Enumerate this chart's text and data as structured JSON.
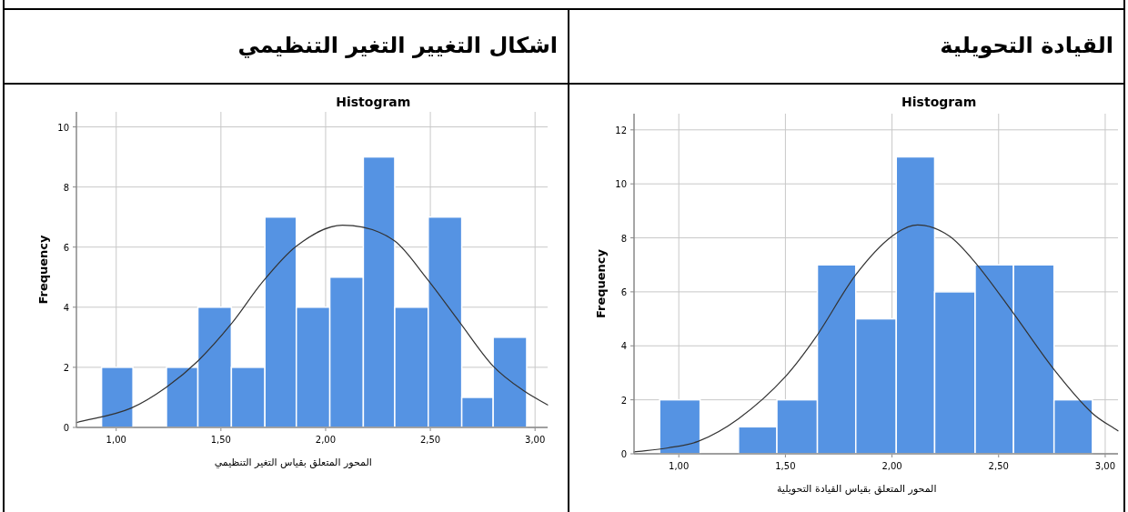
{
  "chart_data": [
    {
      "type": "histogram",
      "title": "القيادة التحويلية",
      "subtitle": "Histogram",
      "xlabel": "المحور المتعلق  بقياس القيادة التحويلية",
      "ylabel": "Frequency",
      "color": "#5593e3",
      "bins": [
        0.91,
        1.1,
        1.28,
        1.46,
        1.65,
        1.83,
        2.02,
        2.2,
        2.39,
        2.57,
        2.76,
        2.94
      ],
      "values": [
        2,
        0,
        1,
        2,
        7,
        5,
        11,
        6,
        7,
        7,
        2
      ],
      "series": [
        {
          "type": "line",
          "color": "#333333",
          "x": [
            0.79,
            0.95,
            1.09,
            1.28,
            1.5,
            1.64,
            1.83,
            2.0,
            2.12,
            2.27,
            2.39,
            2.57,
            2.76,
            2.94,
            3.06
          ],
          "values": [
            0.07,
            0.22,
            0.46,
            1.3,
            2.86,
            4.29,
            6.63,
            8.06,
            8.48,
            8.06,
            7.09,
            5.2,
            3.12,
            1.5,
            0.85
          ]
        }
      ],
      "xlim": [
        0.79,
        3.06
      ],
      "ylim": [
        0,
        12.6
      ],
      "xticks": [
        {
          "value": 1,
          "label": "1,00"
        },
        {
          "value": 1.5,
          "label": "1,50"
        },
        {
          "value": 2,
          "label": "2,00"
        },
        {
          "value": 2.5,
          "label": "2,50"
        },
        {
          "value": 3,
          "label": "3,00"
        }
      ],
      "yticks": [
        0,
        2,
        4,
        6,
        8,
        10,
        12
      ],
      "grid": true
    },
    {
      "type": "histogram",
      "title": "اشكال التغيير التغير التنظيمي",
      "subtitle": "Histogram",
      "xlabel": "المحور المتعلق  بقياس التغير التنظيمي",
      "ylabel": "Frequency",
      "color": "#5593e3",
      "bins": [
        0.93,
        1.08,
        1.24,
        1.39,
        1.55,
        1.71,
        1.86,
        2.02,
        2.18,
        2.33,
        2.49,
        2.65,
        2.8,
        2.96
      ],
      "values": [
        2,
        0,
        2,
        4,
        2,
        7,
        4,
        5,
        9,
        4,
        7,
        1,
        3
      ],
      "series": [
        {
          "type": "line",
          "color": "#333333",
          "x": [
            0.81,
            1.07,
            1.24,
            1.39,
            1.55,
            1.7,
            1.86,
            2.08,
            2.33,
            2.48,
            2.64,
            2.8,
            2.95,
            3.06
          ],
          "values": [
            0.16,
            0.64,
            1.34,
            2.21,
            3.45,
            4.85,
            6.03,
            6.73,
            6.2,
            4.98,
            3.5,
            2.04,
            1.2,
            0.75
          ]
        }
      ],
      "xlim": [
        0.81,
        3.06
      ],
      "ylim": [
        0,
        10.5
      ],
      "xticks": [
        {
          "value": 1,
          "label": "1,00"
        },
        {
          "value": 1.5,
          "label": "1,50"
        },
        {
          "value": 2,
          "label": "2,00"
        },
        {
          "value": 2.5,
          "label": "2,50"
        },
        {
          "value": 3,
          "label": "3,00"
        }
      ],
      "yticks": [
        0,
        2,
        4,
        6,
        8,
        10
      ],
      "grid": true
    }
  ]
}
